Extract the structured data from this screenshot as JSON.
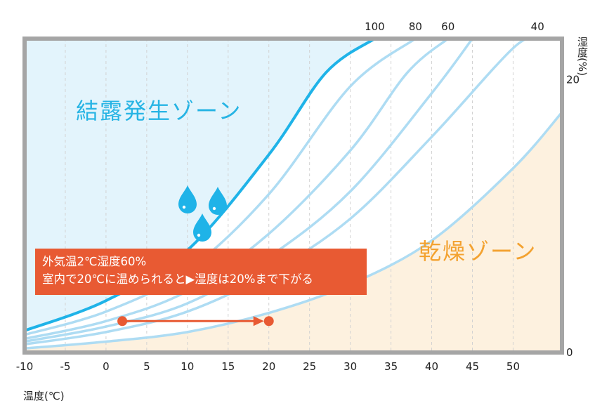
{
  "chart_data": {
    "type": "line",
    "xlabel": "温度(℃)",
    "ylabel": "湿度(%)",
    "xlim": [
      -10,
      56
    ],
    "ylim": [
      0,
      23
    ],
    "x_ticks": [
      "-10",
      "-5",
      "0",
      "5",
      "10",
      "15",
      "20",
      "25",
      "30",
      "35",
      "40",
      "45",
      "50"
    ],
    "y_ticks": [
      "0",
      "20"
    ],
    "series": [
      {
        "name": "100",
        "values": [
          [
            -10,
            1.6
          ],
          [
            0,
            3.8
          ],
          [
            10,
            7.5
          ],
          [
            20,
            14.5
          ],
          [
            27,
            20.5
          ],
          [
            33,
            23
          ]
        ]
      },
      {
        "name": "80",
        "values": [
          [
            -10,
            1.3
          ],
          [
            0,
            3.0
          ],
          [
            10,
            6.0
          ],
          [
            20,
            11.6
          ],
          [
            30,
            19.5
          ],
          [
            38,
            23
          ]
        ]
      },
      {
        "name": "60",
        "values": [
          [
            -10,
            1.0
          ],
          [
            0,
            2.3
          ],
          [
            10,
            4.5
          ],
          [
            20,
            8.7
          ],
          [
            30,
            14.8
          ],
          [
            37,
            20.5
          ],
          [
            42,
            23
          ]
        ]
      },
      {
        "name": "",
        "values": [
          [
            -10,
            0.8
          ],
          [
            0,
            1.9
          ],
          [
            10,
            3.6
          ],
          [
            20,
            7.0
          ],
          [
            30,
            11.8
          ],
          [
            40,
            19.0
          ],
          [
            45,
            23
          ]
        ]
      },
      {
        "name": "40",
        "values": [
          [
            -10,
            0.6
          ],
          [
            0,
            1.5
          ],
          [
            10,
            3.0
          ],
          [
            20,
            5.8
          ],
          [
            30,
            9.8
          ],
          [
            40,
            15.8
          ],
          [
            50,
            22.3
          ],
          [
            53,
            23
          ]
        ]
      },
      {
        "name": "",
        "values": [
          [
            -10,
            0.3
          ],
          [
            0,
            0.8
          ],
          [
            10,
            1.5
          ],
          [
            20,
            2.9
          ],
          [
            30,
            5.0
          ],
          [
            40,
            8.2
          ],
          [
            50,
            13.5
          ],
          [
            56,
            17.6
          ]
        ]
      }
    ],
    "annotation_arrow": {
      "from": [
        2,
        2.3
      ],
      "to": [
        20,
        2.3
      ]
    },
    "zones": [
      "結露発生ゾーン",
      "乾燥ゾーン"
    ],
    "annotation_lines": [
      "外気温2℃湿度60%",
      "室内で20℃に温められると▶湿度は20%まで下がる"
    ]
  },
  "colors": {
    "condensation_zone": "#e3f4fc",
    "dry_zone": "#fdf1df",
    "dew_line": "#1fb3e8",
    "rh_lines": "#aedcf3",
    "frame": "#a5a5a5",
    "arrow": "#e85a33",
    "drop": "#1fb3e8"
  },
  "icons": [
    "water-drop-icon",
    "water-drop-icon",
    "water-drop-icon"
  ]
}
